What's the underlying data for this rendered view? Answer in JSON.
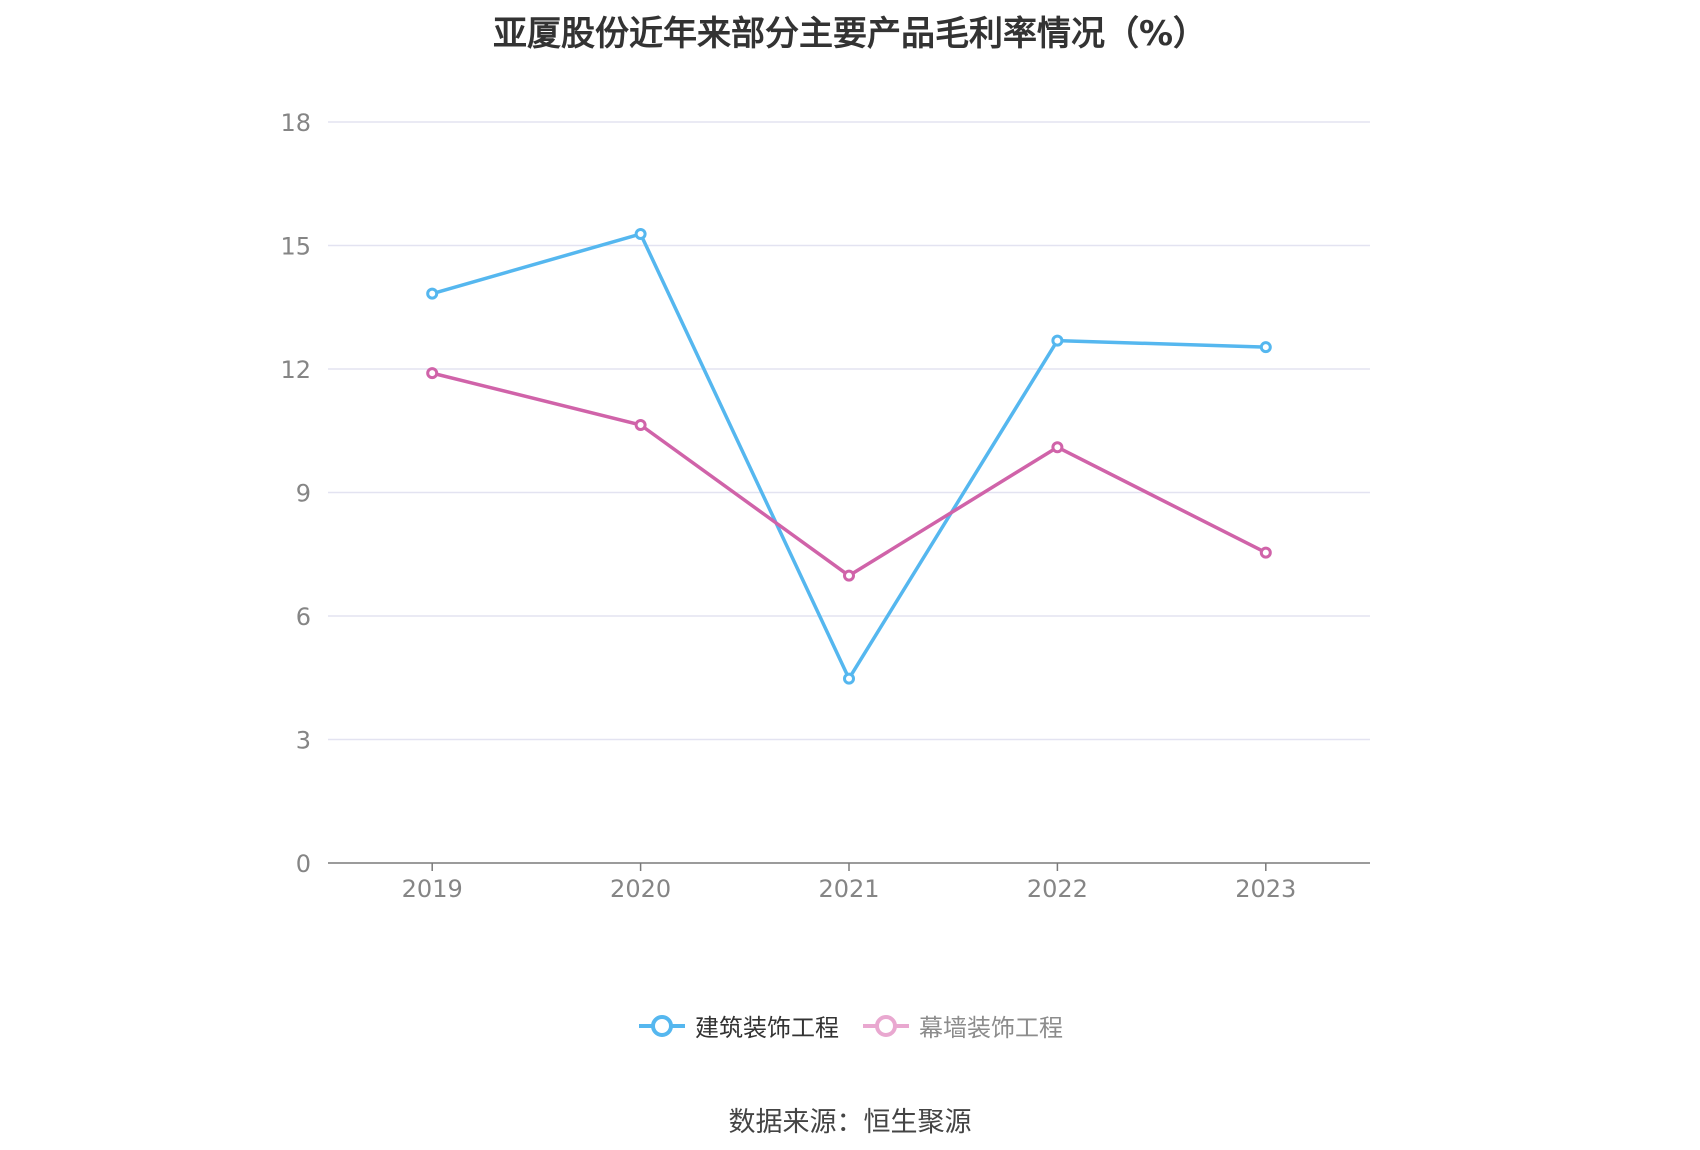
{
  "title": "亚厦股份近年来部分主要产品毛利率情况（%）",
  "source_note": "数据来源：恒生聚源",
  "colors": {
    "series_1": "#55b7ef",
    "series_1_legend_text": "#333333",
    "series_2": "#d063a9",
    "series_2_legend": "#e9a8d0",
    "series_2_legend_text": "#8c8c8c",
    "grid": "#e3e3f1",
    "axis": "#7a7a7a",
    "tick_text": "#858585"
  },
  "chart_data": {
    "type": "line",
    "title": "亚厦股份近年来部分主要产品毛利率情况（%）",
    "categories": [
      "2019",
      "2020",
      "2021",
      "2022",
      "2023"
    ],
    "ylim": [
      0,
      18
    ],
    "yticks": [
      0,
      3,
      6,
      9,
      12,
      15,
      18
    ],
    "grid": true,
    "legend_position": "bottom",
    "series": [
      {
        "name": "建筑装饰工程",
        "values": [
          13.83,
          15.28,
          4.48,
          12.69,
          12.53
        ]
      },
      {
        "name": "幕墙装饰工程",
        "values": [
          11.9,
          10.64,
          6.98,
          10.1,
          7.54
        ]
      }
    ]
  }
}
